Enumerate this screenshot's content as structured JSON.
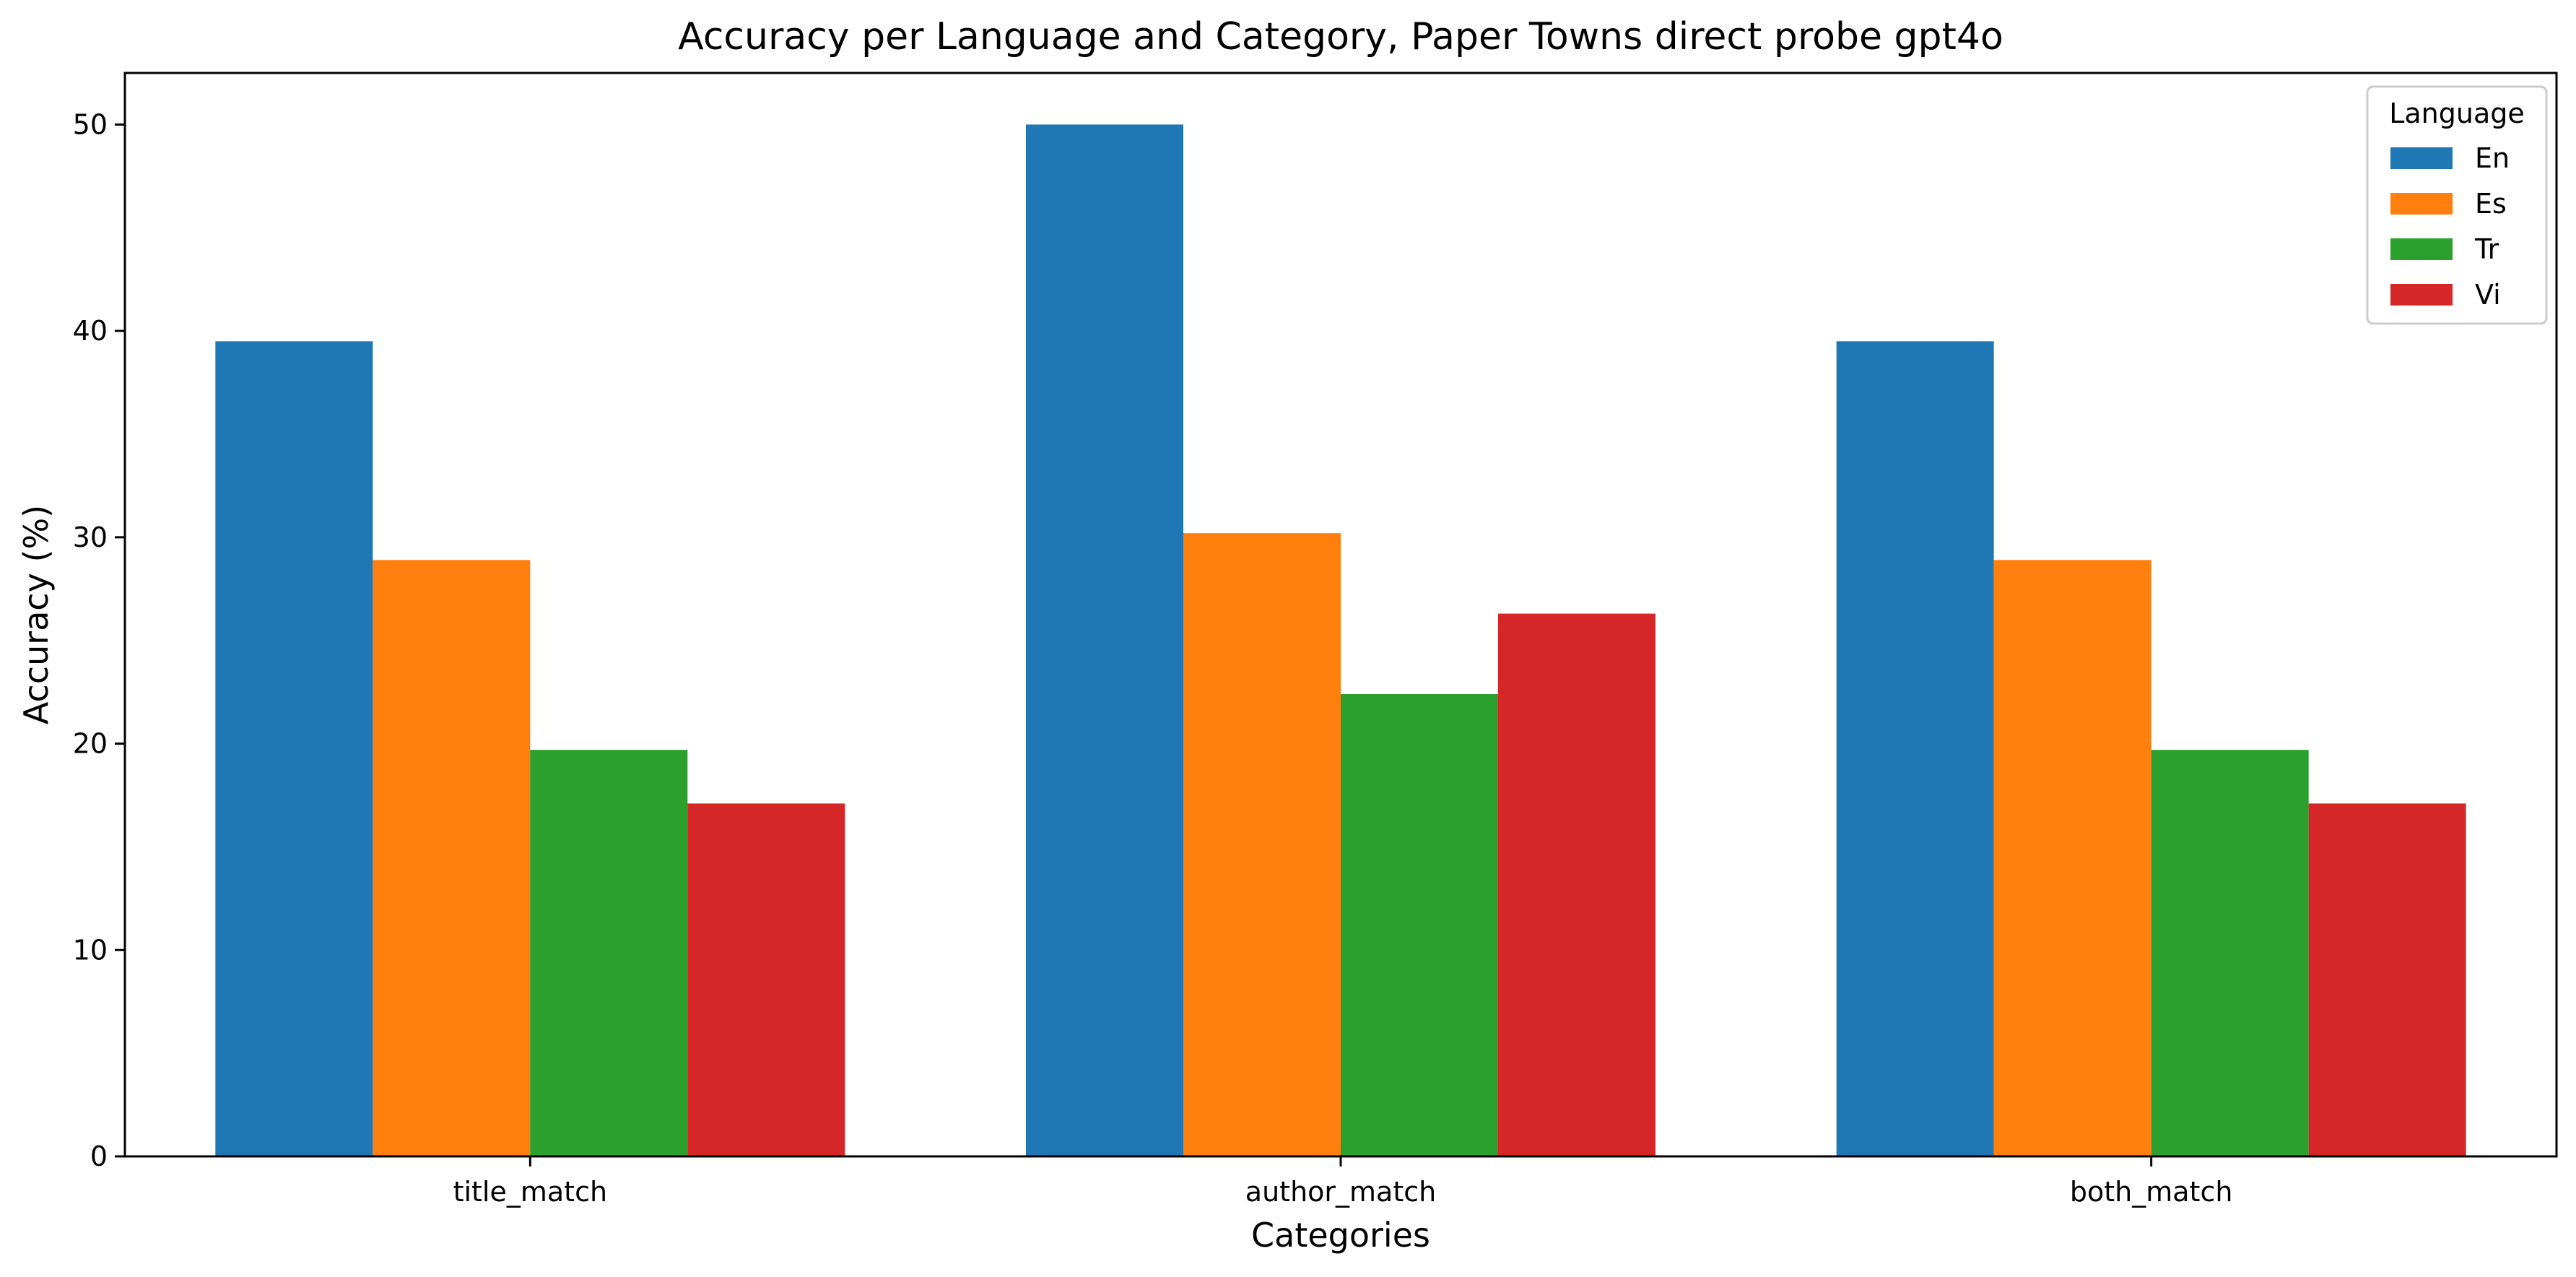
{
  "chart_data": {
    "type": "bar",
    "title": "Accuracy per Language and Category, Paper Towns direct probe gpt4o",
    "xlabel": "Categories",
    "ylabel": "Accuracy (%)",
    "categories": [
      "title_match",
      "author_match",
      "both_match"
    ],
    "ylim": [
      0,
      52.5
    ],
    "yticks": [
      0,
      10,
      20,
      30,
      40,
      50
    ],
    "grid": false,
    "legend": {
      "title": "Language",
      "position": "top-right"
    },
    "series": [
      {
        "name": "En",
        "color": "#1f77b4",
        "values": [
          39.5,
          50.0,
          39.5
        ]
      },
      {
        "name": "Es",
        "color": "#ff7f0e",
        "values": [
          28.9,
          30.2,
          28.9
        ]
      },
      {
        "name": "Tr",
        "color": "#2ca02c",
        "values": [
          19.7,
          22.4,
          19.7
        ]
      },
      {
        "name": "Vi",
        "color": "#d62728",
        "values": [
          17.1,
          26.3,
          17.1
        ]
      }
    ]
  }
}
